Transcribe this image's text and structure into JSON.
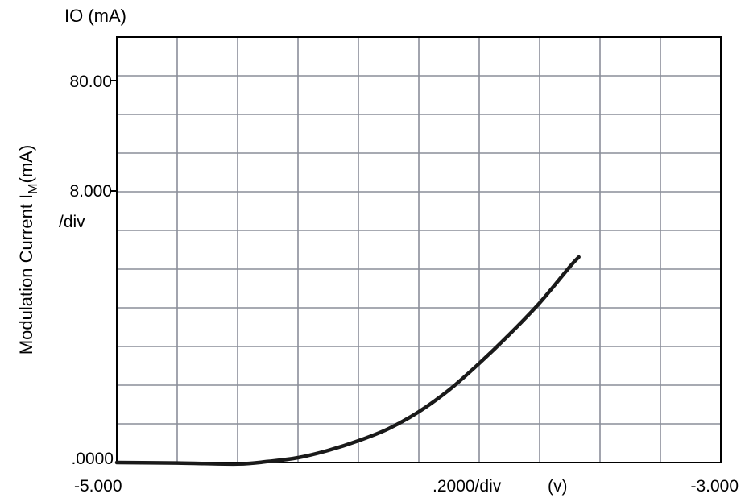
{
  "chart_data": {
    "type": "line",
    "top_label": "IO  (mA)",
    "ylabel_text": "Modulation Current I",
    "ylabel_sub": "M",
    "ylabel_suffix": "(mA)",
    "y_tick_labels": {
      "top": "80.00",
      "mid": "8.000",
      "mid_unit": "/div",
      "bottom": ".0000"
    },
    "x_tick_labels": {
      "left": "-5.000",
      "center": ".2000/div",
      "unit": "(v)",
      "right": "-3.000"
    },
    "xlim": [
      -5.0,
      -3.0
    ],
    "ylim": [
      0,
      88
    ],
    "x_divisions": 10,
    "y_divisions": 11,
    "grid": true,
    "series": [
      {
        "x": [
          -5.0,
          -4.8,
          -4.6,
          -4.5,
          -4.4,
          -4.3,
          -4.2,
          -4.1,
          -4.0,
          -3.9,
          -3.8,
          -3.7,
          -3.6,
          -3.5,
          -3.47
        ],
        "y": [
          0.0,
          -0.1,
          -0.3,
          0.2,
          1.0,
          2.5,
          4.5,
          7.0,
          10.5,
          15.0,
          20.5,
          26.5,
          33.0,
          40.5,
          42.5
        ]
      }
    ]
  }
}
